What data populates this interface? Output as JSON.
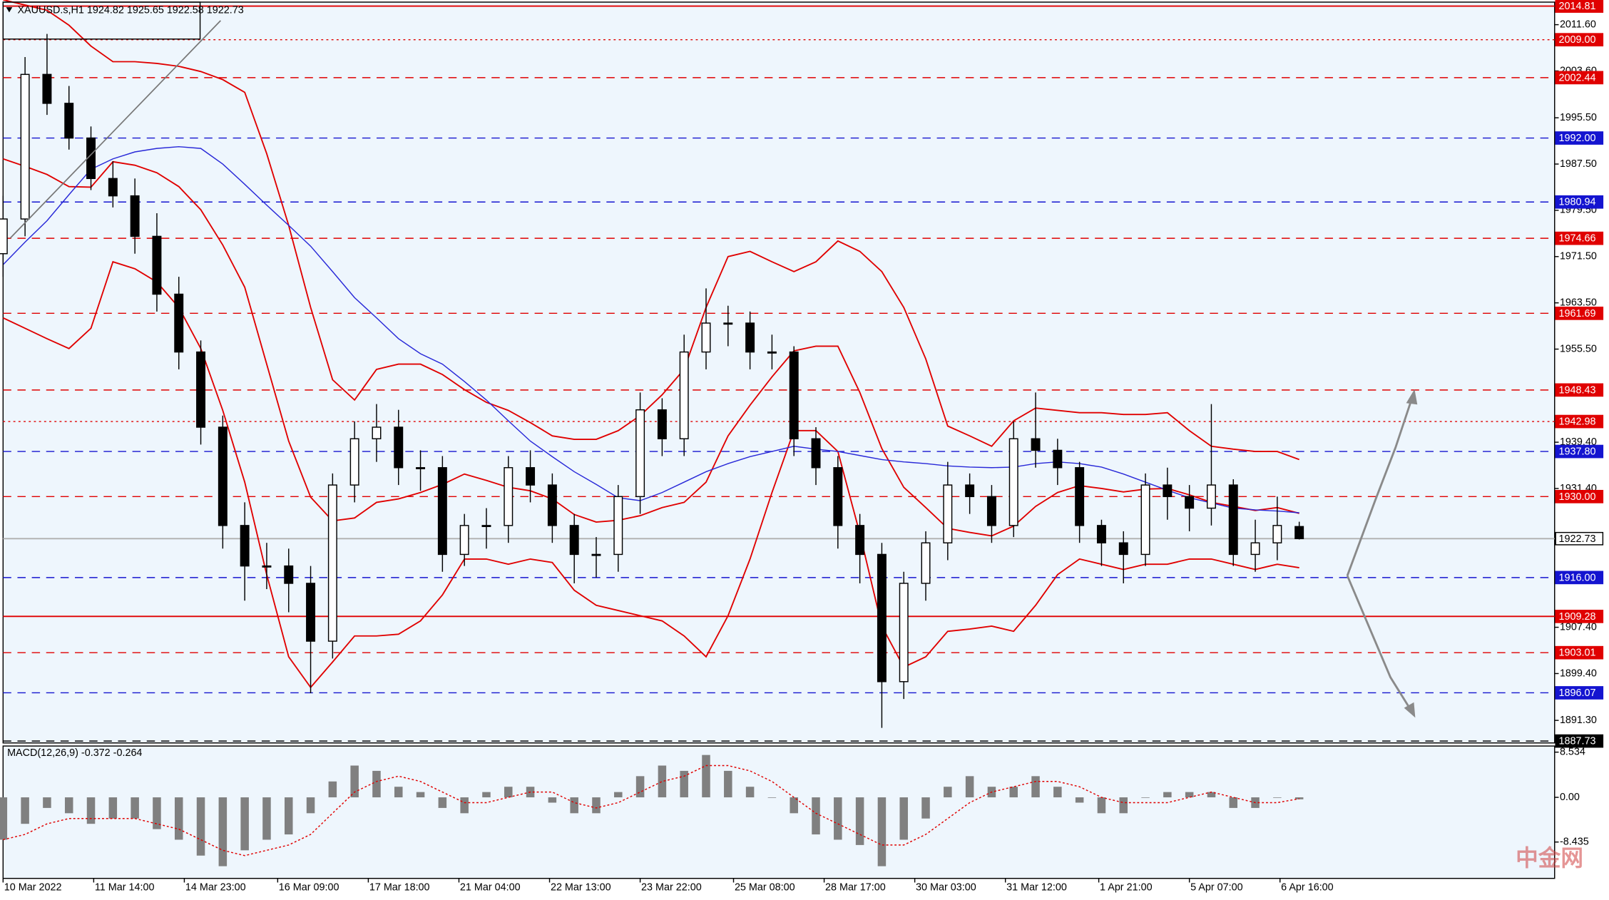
{
  "chart_data": {
    "type": "candlestick",
    "title": "XAUUSD.s,H1  1924.82 1925.65 1922.58 1922.73",
    "watermark": "中金网",
    "xlim": [
      0,
      565
    ],
    "ylim": [
      1887.4,
      2015.5
    ],
    "x": [
      0,
      8,
      16,
      24,
      32,
      40,
      48,
      56,
      64,
      72,
      80,
      88,
      96,
      104,
      112,
      120,
      128,
      136,
      144,
      152,
      160,
      168,
      176,
      184,
      192,
      200,
      208,
      216,
      224,
      232,
      240,
      248,
      256,
      264,
      272,
      280,
      288,
      296,
      304,
      312,
      320,
      328,
      336,
      344,
      352,
      360,
      368,
      376,
      384,
      392,
      400,
      408,
      416,
      424,
      432,
      440,
      448,
      456,
      464,
      472
    ],
    "open": [
      1972,
      1978,
      2003,
      1998,
      1992,
      1985,
      1982,
      1975,
      1965,
      1955,
      1942,
      1925,
      1918,
      1918,
      1915,
      1905,
      1932,
      1940,
      1942,
      1935,
      1935,
      1920,
      1925,
      1925,
      1935,
      1932,
      1925,
      1920,
      1920,
      1930,
      1945,
      1940,
      1955,
      1960,
      1960,
      1955,
      1955,
      1940,
      1935,
      1925,
      1920,
      1898,
      1915,
      1922,
      1932,
      1930,
      1925,
      1940,
      1938,
      1935,
      1925,
      1922,
      1920,
      1932,
      1930,
      1928,
      1932,
      1920,
      1922,
      1924.82
    ],
    "high": [
      1982,
      2006,
      2010,
      2001,
      1994,
      1988,
      1985,
      1979,
      1968,
      1957,
      1944,
      1929,
      1922,
      1921,
      1918,
      1934,
      1943,
      1946,
      1945,
      1938,
      1937,
      1927,
      1928,
      1937,
      1938,
      1934,
      1927,
      1923,
      1932,
      1948,
      1947,
      1958,
      1966,
      1963,
      1962,
      1958,
      1956,
      1942,
      1937,
      1927,
      1922,
      1917,
      1924,
      1936,
      1934,
      1932,
      1943,
      1948,
      1940,
      1936,
      1926,
      1924,
      1934,
      1935,
      1932,
      1946,
      1933,
      1926,
      1930,
      1925.65
    ],
    "low": [
      1968,
      1975,
      1996,
      1990,
      1983,
      1980,
      1972,
      1962,
      1952,
      1939,
      1921,
      1912,
      1914,
      1910,
      1896,
      1902,
      1929,
      1936,
      1932,
      1931,
      1917,
      1918,
      1921,
      1922,
      1929,
      1922,
      1915,
      1916,
      1917,
      1927,
      1937,
      1937,
      1952,
      1956,
      1952,
      1952,
      1937,
      1932,
      1921,
      1915,
      1890,
      1895,
      1912,
      1919,
      1927,
      1922,
      1923,
      1935,
      1932,
      1922,
      1918,
      1915,
      1918,
      1926,
      1924,
      1925,
      1918,
      1917,
      1919,
      1922.58
    ],
    "close": [
      1978,
      2003,
      1998,
      1992,
      1985,
      1982,
      1975,
      1965,
      1955,
      1942,
      1925,
      1918,
      1918,
      1915,
      1905,
      1932,
      1940,
      1942,
      1935,
      1935,
      1920,
      1925,
      1925,
      1935,
      1932,
      1925,
      1920,
      1920,
      1930,
      1945,
      1940,
      1955,
      1960,
      1960,
      1955,
      1955,
      1940,
      1935,
      1925,
      1920,
      1898,
      1915,
      1922,
      1932,
      1930,
      1925,
      1940,
      1938,
      1935,
      1925,
      1922,
      1920,
      1932,
      1930,
      1928,
      1932,
      1920,
      1922,
      1925,
      1922.73
    ],
    "bands": {
      "color": "#e00000",
      "upper": [
        2015.9,
        2015.0,
        2014.1,
        2011.5,
        2007.9,
        2005.2,
        2005.2,
        2004.9,
        2004.4,
        2003.5,
        2002.1,
        1999.9,
        1989.3,
        1976.9,
        1962.7,
        1950.2,
        1946.7,
        1952.0,
        1952.9,
        1952.9,
        1951.1,
        1948.5,
        1946.3,
        1944.9,
        1942.8,
        1940.5,
        1939.9,
        1939.9,
        1941.4,
        1944.0,
        1947.6,
        1952.0,
        1962.7,
        1971.5,
        1972.4,
        1970.6,
        1968.9,
        1970.6,
        1974.2,
        1972.4,
        1968.9,
        1962.7,
        1953.8,
        1942.2,
        1940.5,
        1938.7,
        1943.1,
        1945.3,
        1944.9,
        1944.5,
        1944.5,
        1944.2,
        1944.2,
        1944.5,
        1941.4,
        1938.7,
        1938.2,
        1937.8,
        1937.8,
        1936.4
      ],
      "middle": [
        1988.4,
        1987.1,
        1985.7,
        1983.6,
        1983.5,
        1987.9,
        1987.3,
        1986.0,
        1983.6,
        1979.6,
        1973.5,
        1966.2,
        1952.9,
        1939.6,
        1929.9,
        1925.8,
        1926.3,
        1929.0,
        1929.6,
        1930.7,
        1932.1,
        1933.9,
        1932.8,
        1931.6,
        1931.0,
        1929.6,
        1926.9,
        1925.6,
        1925.9,
        1926.7,
        1928.1,
        1929.0,
        1932.5,
        1940.5,
        1945.8,
        1950.7,
        1955.2,
        1956.0,
        1956.0,
        1948.0,
        1938.3,
        1931.6,
        1928.1,
        1924.5,
        1923.8,
        1923.2,
        1924.9,
        1928.3,
        1930.7,
        1931.9,
        1931.4,
        1930.8,
        1931.3,
        1931.4,
        1930.3,
        1929.0,
        1928.3,
        1927.6,
        1928.1,
        1927.1
      ],
      "lower": [
        1960.9,
        1959.1,
        1957.3,
        1955.6,
        1959.1,
        1970.6,
        1969.4,
        1967.1,
        1962.7,
        1955.6,
        1944.9,
        1932.5,
        1916.5,
        1902.3,
        1897.0,
        1901.4,
        1905.9,
        1905.9,
        1906.2,
        1908.5,
        1913.0,
        1919.2,
        1919.2,
        1918.3,
        1919.2,
        1918.6,
        1913.8,
        1911.2,
        1910.3,
        1909.4,
        1908.5,
        1905.9,
        1902.3,
        1909.4,
        1919.2,
        1930.7,
        1941.4,
        1941.4,
        1937.8,
        1923.6,
        1907.6,
        1900.5,
        1902.3,
        1906.7,
        1907.1,
        1907.6,
        1906.7,
        1911.2,
        1916.5,
        1919.2,
        1918.3,
        1917.4,
        1918.3,
        1918.3,
        1919.2,
        1919.2,
        1918.3,
        1917.4,
        1918.3,
        1917.7
      ]
    },
    "ma": {
      "color": "#2828d8",
      "values": [
        1970.1,
        1974.0,
        1977.7,
        1982.2,
        1986.6,
        1988.4,
        1989.6,
        1990.2,
        1990.5,
        1990.2,
        1987.5,
        1984.0,
        1980.4,
        1976.9,
        1973.3,
        1968.9,
        1964.4,
        1960.9,
        1957.3,
        1954.7,
        1952.9,
        1949.9,
        1946.7,
        1943.1,
        1939.6,
        1936.9,
        1934.3,
        1932.1,
        1929.8,
        1929.3,
        1930.7,
        1932.5,
        1934.3,
        1935.7,
        1936.9,
        1937.8,
        1938.7,
        1938.2,
        1937.8,
        1937.1,
        1936.4,
        1936.0,
        1935.7,
        1935.3,
        1935.1,
        1935.0,
        1935.1,
        1935.7,
        1936.0,
        1935.7,
        1935.1,
        1933.9,
        1932.5,
        1931.1,
        1929.8,
        1928.9,
        1928.0,
        1927.7,
        1927.5,
        1927.2
      ]
    },
    "yticks": [
      {
        "value": 2011.6,
        "label": "2011.60"
      },
      {
        "value": 2003.6,
        "label": "2003.60"
      },
      {
        "value": 1995.5,
        "label": "1995.50"
      },
      {
        "value": 1987.5,
        "label": "1987.50"
      },
      {
        "value": 1979.5,
        "label": "1979.50"
      },
      {
        "value": 1971.5,
        "label": "1971.50"
      },
      {
        "value": 1963.5,
        "label": "1963.50"
      },
      {
        "value": 1955.5,
        "label": "1955.50"
      },
      {
        "value": 1939.4,
        "label": "1939.40"
      },
      {
        "value": 1931.4,
        "label": "1931.40"
      },
      {
        "value": 1907.4,
        "label": "1907.40"
      },
      {
        "value": 1899.4,
        "label": "1899.40"
      },
      {
        "value": 1891.3,
        "label": "1891.30"
      }
    ],
    "levels": [
      {
        "value": 2014.81,
        "label": "2014.81",
        "color": "#e00000",
        "style": "solid"
      },
      {
        "value": 2009,
        "label": "2009.00",
        "color": "#e00000",
        "style": "dot"
      },
      {
        "value": 2002.44,
        "label": "2002.44",
        "color": "#e00000",
        "style": "dash"
      },
      {
        "value": 1992,
        "label": "1992.00",
        "color": "#1414d0",
        "style": "dash"
      },
      {
        "value": 1980.94,
        "label": "1980.94",
        "color": "#1414d0",
        "style": "dash"
      },
      {
        "value": 1974.66,
        "label": "1974.66",
        "color": "#e00000",
        "style": "dash"
      },
      {
        "value": 1961.69,
        "label": "1961.69",
        "color": "#e00000",
        "style": "dash"
      },
      {
        "value": 1948.43,
        "label": "1948.43",
        "color": "#e00000",
        "style": "dash"
      },
      {
        "value": 1942.98,
        "label": "1942.98",
        "color": "#e00000",
        "style": "dot"
      },
      {
        "value": 1937.8,
        "label": "1937.80",
        "color": "#1414d0",
        "style": "dash"
      },
      {
        "value": 1930,
        "label": "1930.00",
        "color": "#e00000",
        "style": "dash"
      },
      {
        "value": 1922.73,
        "label": "1922.73",
        "color": "#b0b0b0",
        "style": "solid"
      },
      {
        "value": 1916,
        "label": "1916.00",
        "color": "#1414d0",
        "style": "dash"
      },
      {
        "value": 1909.28,
        "label": "1909.28",
        "color": "#e00000",
        "style": "solid"
      },
      {
        "value": 1903.01,
        "label": "1903.01",
        "color": "#e00000",
        "style": "dash"
      },
      {
        "value": 1896.07,
        "label": "1896.07",
        "color": "#1414d0",
        "style": "dash"
      },
      {
        "value": 1887.73,
        "label": "1887.73",
        "color": "#000000",
        "style": "dash"
      }
    ],
    "xticks": [
      {
        "value": 0,
        "label": "10 Mar 2022"
      },
      {
        "value": 33,
        "label": "11 Mar 14:00"
      },
      {
        "value": 66,
        "label": "14 Mar 23:00"
      },
      {
        "value": 100,
        "label": "16 Mar 09:00"
      },
      {
        "value": 133,
        "label": "17 Mar 18:00"
      },
      {
        "value": 166,
        "label": "21 Mar 04:00"
      },
      {
        "value": 199,
        "label": "22 Mar 13:00"
      },
      {
        "value": 232,
        "label": "23 Mar 22:00"
      },
      {
        "value": 266,
        "label": "25 Mar 08:00"
      },
      {
        "value": 299,
        "label": "28 Mar 17:00"
      },
      {
        "value": 332,
        "label": "30 Mar 03:00"
      },
      {
        "value": 365,
        "label": "31 Mar 12:00"
      },
      {
        "value": 399,
        "label": "1 Apr 21:00"
      },
      {
        "value": 432,
        "label": "5 Apr 07:00"
      },
      {
        "value": 465,
        "label": "6 Apr 16:00"
      }
    ],
    "macd": {
      "label": "MACD(12,26,9) -0.372 -0.264",
      "ylim": [
        -15.3,
        9.69
      ],
      "yticks": [
        8.534,
        {
          "value": 0,
          "label": "0.00"
        },
        -8.435
      ],
      "color": "#808080",
      "signal_color": "#e00000",
      "histogram": [
        -8,
        -5,
        -2,
        -3,
        -5,
        -4,
        -4,
        -6,
        -8,
        -11,
        -13,
        -10,
        -8,
        -7,
        -3,
        3,
        6,
        5,
        2,
        1,
        -2,
        -3,
        1,
        2,
        2,
        -1,
        -3,
        -3,
        1,
        4,
        6,
        5,
        8,
        5,
        2,
        0,
        -3,
        -7,
        -8,
        -9,
        -13,
        -8,
        -4,
        2,
        4,
        2,
        2,
        4,
        2,
        -1,
        -3,
        -3,
        0,
        1,
        1,
        1,
        -2,
        -2,
        0,
        -0.372
      ],
      "signal": [
        -8,
        -7,
        -5,
        -4,
        -4,
        -4,
        -4,
        -5,
        -6,
        -8,
        -10,
        -11,
        -10,
        -9,
        -7,
        -3,
        1,
        3,
        4,
        3,
        1,
        -1,
        -1,
        0,
        1,
        1,
        -1,
        -2,
        -1,
        1,
        3,
        4,
        6,
        6,
        5,
        3,
        0,
        -3,
        -5,
        -7,
        -9,
        -9,
        -7,
        -4,
        -1,
        1,
        2,
        3,
        3,
        2,
        0,
        -1,
        -1,
        -1,
        0,
        1,
        0,
        -1,
        -1,
        -0.264
      ]
    }
  }
}
